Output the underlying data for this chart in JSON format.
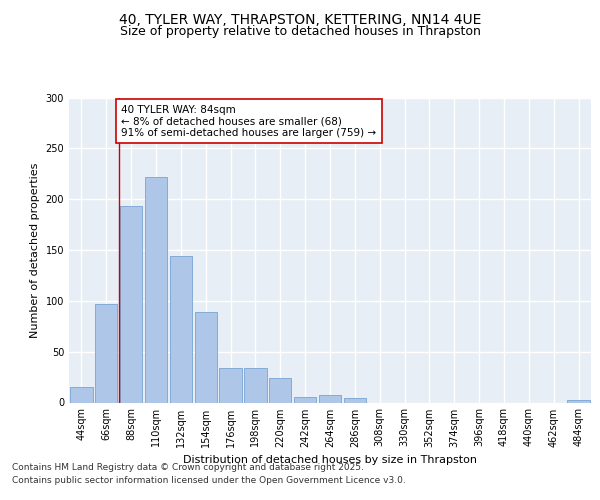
{
  "title_line1": "40, TYLER WAY, THRAPSTON, KETTERING, NN14 4UE",
  "title_line2": "Size of property relative to detached houses in Thrapston",
  "xlabel": "Distribution of detached houses by size in Thrapston",
  "ylabel": "Number of detached properties",
  "categories": [
    "44sqm",
    "66sqm",
    "88sqm",
    "110sqm",
    "132sqm",
    "154sqm",
    "176sqm",
    "198sqm",
    "220sqm",
    "242sqm",
    "264sqm",
    "286sqm",
    "308sqm",
    "330sqm",
    "352sqm",
    "374sqm",
    "396sqm",
    "418sqm",
    "440sqm",
    "462sqm",
    "484sqm"
  ],
  "values": [
    15,
    97,
    193,
    222,
    144,
    89,
    34,
    34,
    24,
    5,
    7,
    4,
    0,
    0,
    0,
    0,
    0,
    0,
    0,
    0,
    2
  ],
  "bar_color": "#aec6e8",
  "bar_edge_color": "#6699cc",
  "vline_x": 1.5,
  "vline_color": "#cc0000",
  "annotation_text": "40 TYLER WAY: 84sqm\n← 8% of detached houses are smaller (68)\n91% of semi-detached houses are larger (759) →",
  "annotation_box_color": "#ffffff",
  "annotation_box_edge": "#cc0000",
  "ylim": [
    0,
    300
  ],
  "yticks": [
    0,
    50,
    100,
    150,
    200,
    250,
    300
  ],
  "background_color": "#e8eef5",
  "grid_color": "#ffffff",
  "footer_line1": "Contains HM Land Registry data © Crown copyright and database right 2025.",
  "footer_line2": "Contains public sector information licensed under the Open Government Licence v3.0.",
  "title_fontsize": 10,
  "subtitle_fontsize": 9,
  "axis_label_fontsize": 8,
  "tick_fontsize": 7,
  "annotation_fontsize": 7.5,
  "footer_fontsize": 6.5
}
